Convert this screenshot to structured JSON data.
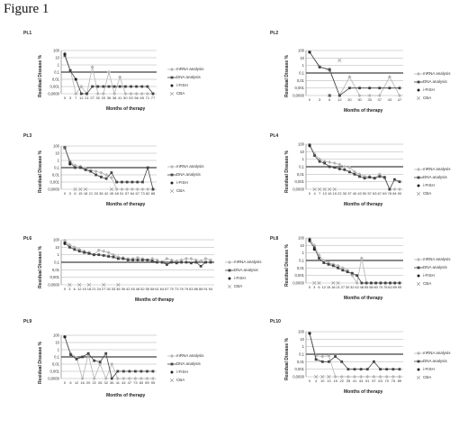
{
  "figure_title": "Figure 1",
  "common": {
    "ylabel": "Residual Disease %",
    "xlabel": "Months of therapy",
    "y_ticks": [
      "100",
      "10",
      "1",
      "0,1",
      "0,01",
      "0,001",
      "0,0000"
    ],
    "legend": [
      "mRNA analysis",
      "DNA analysis",
      "i-FISH",
      "CBA"
    ]
  },
  "colors": {
    "mrna": "#b5b5b5",
    "dna": "#444444",
    "fish": "#222222",
    "cba": "#888888",
    "grid": "#9a9a9a",
    "axis": "#555555"
  },
  "chart_data": [
    {
      "type": "line",
      "title": "Pt.1",
      "xlabel": "Months of therapy",
      "ylabel": "Residual Disease %",
      "categories": [
        "0",
        "3",
        "7",
        "12",
        "21",
        "27",
        "30",
        "33",
        "36",
        "38",
        "41",
        "50",
        "53",
        "56",
        "65",
        "71",
        "77"
      ],
      "y_scale": "log",
      "ylim": [
        0.0001,
        100
      ],
      "series": [
        {
          "name": "mRNA analysis",
          "values": [
            40,
            0.2,
            0.0001,
            0.001,
            0.0001,
            0.5,
            0.0001,
            0.0001,
            0.1,
            0.0001,
            0.02,
            0.0001,
            0.0001,
            0.0001,
            0.0001,
            0.0001,
            0.0001
          ]
        },
        {
          "name": "DNA analysis",
          "values": [
            20,
            0.15,
            0.01,
            0.0001,
            0.0001,
            0.001,
            0.001,
            0.001,
            0.001,
            0.001,
            0.001,
            0.001,
            0.001,
            0.001,
            0.001,
            0.001,
            0.0001
          ]
        },
        {
          "name": "i-FISH",
          "values": [
            30,
            null,
            0.01,
            null,
            null,
            null,
            null,
            null,
            null,
            null,
            null,
            null,
            null,
            null,
            null,
            null,
            null
          ]
        },
        {
          "name": "CBA",
          "values": [
            null,
            null,
            null,
            null,
            null,
            null,
            null,
            null,
            null,
            null,
            null,
            null,
            null,
            null,
            null,
            null,
            null
          ]
        }
      ]
    },
    {
      "type": "line",
      "title": "Pt.2",
      "xlabel": "Months of therapy",
      "ylabel": "Residual Disease %",
      "categories": [
        "0",
        "3",
        "6",
        "12",
        "20",
        "30",
        "33",
        "37",
        "43",
        "47"
      ],
      "y_scale": "log",
      "ylim": [
        0.0001,
        100
      ],
      "series": [
        {
          "name": "mRNA analysis",
          "values": [
            60,
            0.8,
            0.2,
            0.0001,
            0.03,
            0.0001,
            0.0001,
            0.0001,
            0.03,
            0.0001
          ]
        },
        {
          "name": "DNA analysis",
          "values": [
            60,
            0.6,
            0.3,
            0.0001,
            0.001,
            0.001,
            0.001,
            0.001,
            0.001,
            0.001
          ]
        },
        {
          "name": "i-FISH",
          "values": [
            60,
            null,
            0.0001,
            null,
            null,
            null,
            null,
            null,
            null,
            null
          ]
        },
        {
          "name": "CBA",
          "values": [
            null,
            null,
            0.0001,
            5,
            null,
            null,
            null,
            null,
            null,
            null
          ]
        }
      ]
    },
    {
      "type": "line",
      "title": "Pt.3",
      "xlabel": "Months of therapy",
      "ylabel": "Residual Disease %",
      "categories": [
        "0",
        "3",
        "6",
        "15",
        "18",
        "21",
        "33",
        "36",
        "42",
        "45",
        "48",
        "51",
        "57",
        "64",
        "67",
        "73",
        "82",
        "88"
      ],
      "y_scale": "log",
      "ylim": [
        0.0001,
        100
      ],
      "series": [
        {
          "name": "mRNA analysis",
          "values": [
            60,
            0.8,
            0.2,
            0.15,
            0.08,
            0.04,
            0.03,
            0.02,
            0.01,
            0.004,
            0.0001,
            0.0001,
            0.0001,
            0.0001,
            0.0001,
            0.0001,
            0.0001,
            0.0001
          ]
        },
        {
          "name": "DNA analysis",
          "values": [
            60,
            0.5,
            0.1,
            0.1,
            0.05,
            0.03,
            0.01,
            0.005,
            0.003,
            0.02,
            0.001,
            0.001,
            0.001,
            0.001,
            0.001,
            0.001,
            0.1,
            0.0001
          ]
        },
        {
          "name": "i-FISH",
          "values": [
            60,
            0.3,
            null,
            null,
            null,
            null,
            null,
            null,
            null,
            null,
            null,
            null,
            null,
            null,
            null,
            null,
            null,
            null
          ]
        },
        {
          "name": "CBA",
          "values": [
            60,
            null,
            0.0001,
            0.0001,
            0.0001,
            null,
            null,
            null,
            null,
            0.0001,
            null,
            null,
            null,
            null,
            null,
            null,
            null,
            null
          ]
        }
      ]
    },
    {
      "type": "line",
      "title": "Pt.4",
      "xlabel": "Months of therapy",
      "ylabel": "Residual Disease %",
      "categories": [
        "0",
        "4",
        "7",
        "13",
        "16",
        "19",
        "22",
        "30",
        "37",
        "40",
        "43",
        "50",
        "57",
        "63",
        "67",
        "69",
        "78",
        "84",
        "90"
      ],
      "y_scale": "log",
      "ylim": [
        0.0001,
        100
      ],
      "series": [
        {
          "name": "mRNA analysis",
          "values": [
            80,
            5,
            1,
            0.5,
            0.4,
            0.3,
            0.2,
            0.1,
            0.08,
            0.02,
            0.01,
            0.005,
            0.005,
            0.003,
            0.01,
            0.003,
            0.0001,
            0.0001,
            0.0001
          ]
        },
        {
          "name": "DNA analysis",
          "values": [
            80,
            3,
            0.5,
            0.3,
            0.1,
            0.08,
            0.05,
            0.04,
            0.02,
            0.01,
            0.005,
            0.003,
            0.004,
            0.003,
            0.005,
            0.004,
            0.0001,
            0.002,
            0.001
          ]
        },
        {
          "name": "i-FISH",
          "values": [
            60,
            null,
            null,
            null,
            null,
            null,
            null,
            null,
            null,
            null,
            null,
            null,
            null,
            null,
            null,
            null,
            null,
            null,
            null
          ]
        },
        {
          "name": "CBA",
          "values": [
            null,
            0.0001,
            0.0001,
            0.0001,
            0.0001,
            0.0001,
            null,
            null,
            null,
            null,
            null,
            null,
            null,
            null,
            null,
            null,
            null,
            null,
            null
          ]
        }
      ]
    },
    {
      "type": "line",
      "title": "Pt.6",
      "xlabel": "Months of therapy",
      "ylabel": "Residual Disease %",
      "categories": [
        "0",
        "3",
        "6",
        "12",
        "15",
        "18",
        "21",
        "24",
        "27",
        "30",
        "33",
        "36",
        "39",
        "42",
        "45",
        "48",
        "52",
        "55",
        "58",
        "61",
        "64",
        "67",
        "70",
        "73",
        "76",
        "79",
        "83",
        "86",
        "88",
        "91",
        "94"
      ],
      "y_scale": "log",
      "ylim": [
        0.0001,
        100
      ],
      "series": [
        {
          "name": "mRNA analysis",
          "values": [
            80,
            20,
            10,
            5,
            3,
            2,
            1,
            4,
            3,
            2,
            1,
            0.5,
            0.4,
            0.3,
            0.3,
            0.4,
            0.3,
            0.2,
            0.3,
            0.2,
            0.1,
            0.3,
            0.2,
            0.15,
            0.2,
            0.3,
            0.3,
            0.2,
            0.15,
            0.3,
            0.2
          ]
        },
        {
          "name": "DNA analysis",
          "values": [
            40,
            10,
            5,
            3,
            2,
            1.5,
            1,
            1,
            0.8,
            0.6,
            0.5,
            0.3,
            0.3,
            0.2,
            0.2,
            0.2,
            0.2,
            0.2,
            0.15,
            0.1,
            0.1,
            0.05,
            0.1,
            0.08,
            0.1,
            0.1,
            0.08,
            0.1,
            0.03,
            0.1,
            0.1
          ]
        },
        {
          "name": "i-FISH",
          "values": [
            30,
            null,
            null,
            null,
            null,
            null,
            null,
            null,
            null,
            null,
            null,
            null,
            null,
            null,
            null,
            null,
            null,
            null,
            null,
            null,
            null,
            null,
            null,
            null,
            null,
            null,
            null,
            null,
            null,
            null,
            null
          ]
        },
        {
          "name": "CBA",
          "values": [
            null,
            0.0001,
            null,
            0.0001,
            null,
            0.0001,
            null,
            null,
            0.0001,
            null,
            null,
            0.0001,
            null,
            null,
            null,
            null,
            null,
            null,
            null,
            null,
            null,
            null,
            null,
            null,
            null,
            null,
            null,
            null,
            null,
            null,
            null
          ]
        }
      ]
    },
    {
      "type": "line",
      "title": "Pt.8",
      "xlabel": "Months of therapy",
      "ylabel": "Residual Disease %",
      "categories": [
        "0",
        "3",
        "6",
        "12",
        "15",
        "18",
        "21",
        "27",
        "30",
        "32",
        "42",
        "48",
        "55",
        "58",
        "60",
        "70",
        "76",
        "82",
        "89",
        "95"
      ],
      "y_scale": "log",
      "ylim": [
        0.0001,
        100
      ],
      "series": [
        {
          "name": "mRNA analysis",
          "values": [
            80,
            10,
            0.5,
            0.1,
            0.05,
            0.03,
            0.02,
            0.01,
            0.005,
            0.001,
            0.0001,
            0.2,
            0.0001,
            0.0001,
            0.0001,
            0.0001,
            0.0001,
            0.0001,
            0.0001,
            0.0001
          ]
        },
        {
          "name": "DNA analysis",
          "values": [
            40,
            5,
            0.2,
            0.05,
            0.03,
            0.02,
            0.01,
            0.005,
            0.003,
            0.002,
            0.001,
            0.0001,
            0.0001,
            0.0001,
            0.0001,
            0.0001,
            0.0001,
            0.0001,
            0.0001,
            0.0001
          ]
        },
        {
          "name": "i-FISH",
          "values": [
            60,
            3,
            null,
            null,
            null,
            null,
            null,
            null,
            null,
            null,
            null,
            null,
            null,
            null,
            null,
            null,
            null,
            null,
            null,
            null
          ]
        },
        {
          "name": "CBA",
          "values": [
            null,
            0.0001,
            0.0001,
            null,
            null,
            0.0001,
            0.0001,
            null,
            null,
            null,
            null,
            null,
            null,
            null,
            null,
            null,
            null,
            null,
            null,
            null
          ]
        }
      ]
    },
    {
      "type": "line",
      "title": "Pt.9",
      "xlabel": "Months of therapy",
      "ylabel": "Residual Disease %",
      "categories": [
        "0",
        "6",
        "12",
        "16",
        "20",
        "22",
        "26",
        "32",
        "36",
        "41",
        "44",
        "47",
        "73",
        "83",
        "89",
        "95"
      ],
      "y_scale": "log",
      "ylim": [
        0.0001,
        100
      ],
      "series": [
        {
          "name": "mRNA analysis",
          "values": [
            60,
            0.3,
            0.08,
            0.0001,
            0.2,
            0.0001,
            0.01,
            0.0001,
            0.01,
            0.0001,
            0.0001,
            0.0001,
            0.0001,
            0.0001,
            0.0001,
            0.0001
          ]
        },
        {
          "name": "DNA analysis",
          "values": [
            60,
            0.2,
            0.05,
            0.1,
            0.3,
            0.03,
            0.02,
            0.3,
            0.0001,
            0.001,
            0.001,
            0.001,
            0.001,
            0.001,
            0.001,
            0.001
          ]
        },
        {
          "name": "i-FISH",
          "values": [
            60,
            null,
            null,
            null,
            null,
            null,
            null,
            null,
            null,
            null,
            null,
            null,
            null,
            null,
            null,
            null
          ]
        },
        {
          "name": "CBA",
          "values": [
            null,
            null,
            null,
            null,
            null,
            null,
            null,
            null,
            null,
            null,
            null,
            null,
            null,
            null,
            null,
            null
          ]
        }
      ]
    },
    {
      "type": "line",
      "title": "Pt.10",
      "xlabel": "Months of therapy",
      "ylabel": "Residual Disease %",
      "categories": [
        "0",
        "4",
        "10",
        "13",
        "15",
        "22",
        "35",
        "41",
        "44",
        "51",
        "57",
        "63",
        "70",
        "75",
        "89"
      ],
      "y_scale": "log",
      "ylim": [
        0.0001,
        100
      ],
      "series": [
        {
          "name": "mRNA analysis",
          "values": [
            60,
            0.06,
            0.05,
            0.06,
            0.0001,
            0.0001,
            0.0001,
            0.0001,
            0.0001,
            0.0001,
            0.0001,
            0.0001,
            0.0001,
            0.0001,
            0.0001
          ]
        },
        {
          "name": "DNA analysis",
          "values": [
            60,
            0.02,
            0.01,
            0.01,
            0.05,
            0.01,
            0.001,
            0.001,
            0.001,
            0.001,
            0.01,
            0.001,
            0.001,
            0.001,
            0.001
          ]
        },
        {
          "name": "i-FISH",
          "values": [
            60,
            null,
            null,
            null,
            null,
            null,
            null,
            null,
            null,
            null,
            null,
            null,
            null,
            null,
            null
          ]
        },
        {
          "name": "CBA",
          "values": [
            null,
            0.0001,
            0.0001,
            0.0001,
            null,
            null,
            null,
            null,
            null,
            null,
            null,
            null,
            null,
            null,
            null
          ]
        }
      ]
    }
  ]
}
